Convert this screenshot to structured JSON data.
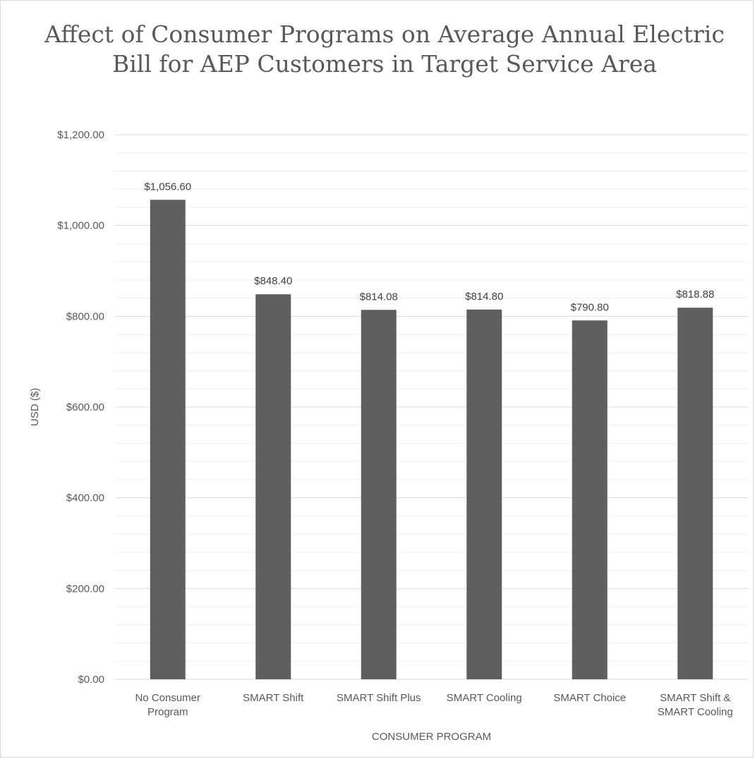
{
  "chart_data": {
    "type": "bar",
    "title": "Affect of Consumer Programs on Average Annual Electric Bill for AEP Customers in Target Service Area",
    "xlabel": "CONSUMER PROGRAM",
    "ylabel": "USD ($)",
    "ylim": [
      0,
      1200
    ],
    "yticks": [
      0,
      200,
      400,
      600,
      800,
      1000,
      1200
    ],
    "ytick_labels": [
      "$0.00",
      "$200.00",
      "$400.00",
      "$600.00",
      "$800.00",
      "$1,000.00",
      "$1,200.00"
    ],
    "categories": [
      [
        "No Consumer",
        "Program"
      ],
      [
        "SMART Shift"
      ],
      [
        "SMART Shift Plus"
      ],
      [
        "SMART Cooling"
      ],
      [
        "SMART Choice"
      ],
      [
        "SMART Shift &",
        "SMART Cooling"
      ]
    ],
    "values": [
      1056.6,
      848.4,
      814.08,
      814.8,
      790.8,
      818.88
    ],
    "data_labels": [
      "$1,056.60",
      "$848.40",
      "$814.08",
      "$814.80",
      "$790.80",
      "$818.88"
    ],
    "grid": true,
    "legend": "none",
    "bar_color": "#5f5f5f"
  }
}
